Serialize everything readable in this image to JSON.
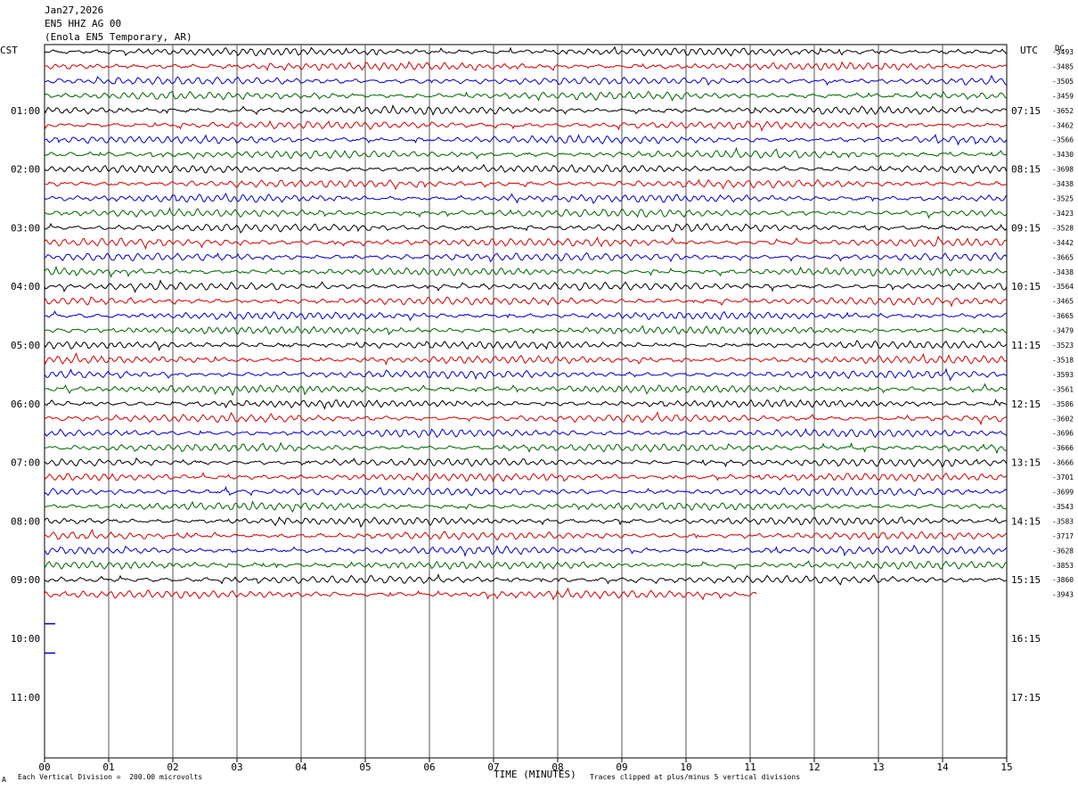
{
  "header": {
    "date": "Jan27,2026",
    "channel": "EN5 HHZ AG 00",
    "station": "(Enola EN5 Temporary, AR)"
  },
  "tz_left": "CST",
  "tz_right": "UTC",
  "corner_label": "DC",
  "footer": {
    "scale": "Each Vertical Division =  200.00 microvolts",
    "xlabel": "TIME (MINUTES)",
    "clip_note": "Traces clipped at plus/minus 5 vertical divisions",
    "mark": "A"
  },
  "chart_data": {
    "type": "line",
    "title": "",
    "xlabel": "TIME (MINUTES)",
    "xlim": [
      0,
      15
    ],
    "x_ticks": [
      "00",
      "01",
      "02",
      "03",
      "04",
      "05",
      "06",
      "07",
      "08",
      "09",
      "10",
      "11",
      "12",
      "13",
      "14",
      "15"
    ],
    "left_hour_labels": [
      "01:00",
      "02:00",
      "03:00",
      "04:00",
      "05:00",
      "06:00",
      "07:00",
      "08:00",
      "09:00",
      "10:00",
      "11:00"
    ],
    "right_hour_labels": [
      "07:15",
      "08:15",
      "09:15",
      "10:15",
      "11:15",
      "12:15",
      "13:15",
      "14:15",
      "15:15",
      "16:15",
      "17:15"
    ],
    "row_colors": [
      "#000000",
      "#d40000",
      "#0000c8",
      "#006400"
    ],
    "row_offsets": [
      "-3493",
      "-3485",
      "-3505",
      "-3459",
      "-3652",
      "-3462",
      "-3566",
      "-3430",
      "-3698",
      "-3438",
      "-3525",
      "-3423",
      "-3528",
      "-3442",
      "-3665",
      "-3438",
      "-3564",
      "-3465",
      "-3665",
      "-3479",
      "-3523",
      "-3518",
      "-3593",
      "-3561",
      "-3586",
      "-3602",
      "-3696",
      "-3666",
      "-3666",
      "-3701",
      "-3699",
      "-3543",
      "-3583",
      "-3717",
      "-3628",
      "-3853",
      "-3860",
      "-3943"
    ],
    "full_rows": 37,
    "last_row_minutes": 11.1,
    "blue_markers_rows": [
      39,
      41
    ]
  }
}
